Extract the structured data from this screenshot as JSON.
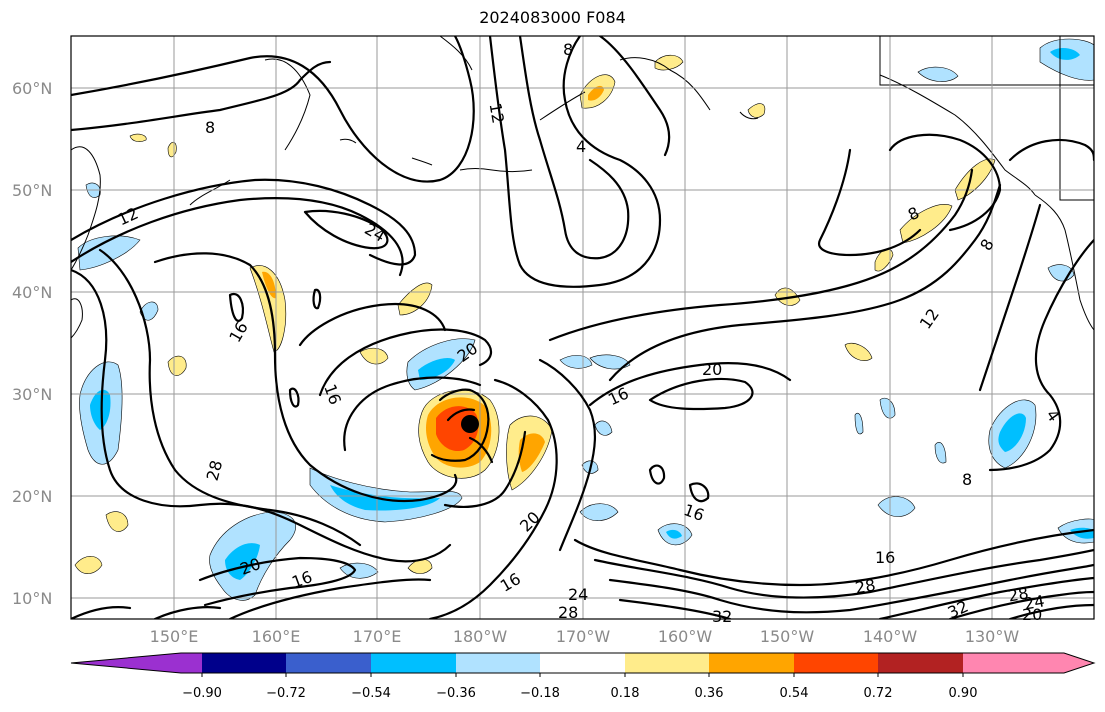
{
  "title": "2024083000 F084",
  "lat_labels": [
    "60°N",
    "50°N",
    "40°N",
    "30°N",
    "20°N",
    "10°N"
  ],
  "lon_labels": [
    "150°E",
    "160°E",
    "170°E",
    "180°W",
    "170°W",
    "160°W",
    "150°W",
    "140°W",
    "130°W"
  ],
  "contour_labels": [
    "8",
    "12",
    "4",
    "8",
    "24",
    "12",
    "16",
    "16",
    "20",
    "16",
    "20",
    "8",
    "8",
    "12",
    "4",
    "8",
    "28",
    "20",
    "16",
    "20",
    "16",
    "16",
    "24",
    "28",
    "32",
    "16",
    "28",
    "28",
    "32",
    "24",
    "20"
  ],
  "colorbar": {
    "ticks": [
      "−0.90",
      "−0.72",
      "−0.54",
      "−0.36",
      "−0.18",
      "0.18",
      "0.36",
      "0.54",
      "0.72",
      "0.90"
    ],
    "colors": [
      "#9b30d0",
      "#00008b",
      "#3a5fcd",
      "#00bfff",
      "#b0e2ff",
      "#ffffff",
      "#ffec8b",
      "#ffa500",
      "#ff4500",
      "#b22222",
      "#ff86b0"
    ]
  }
}
